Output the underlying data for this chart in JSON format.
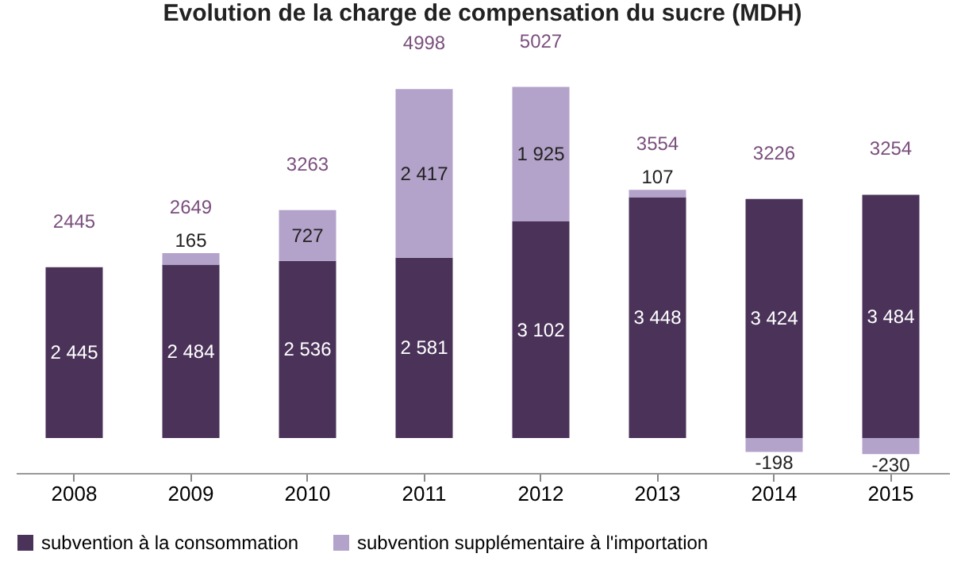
{
  "chart_data": {
    "type": "bar",
    "title": "Evolution de la charge de compensation du sucre (MDH)",
    "stacked": true,
    "legend": "bottom",
    "tick_labels": "x",
    "categories": [
      "2008",
      "2009",
      "2010",
      "2011",
      "2012",
      "2013",
      "2014",
      "2015"
    ],
    "series": [
      {
        "name": "subvention à la consommation",
        "color": "#4a3259",
        "values": [
          2445,
          2484,
          2536,
          2581,
          3102,
          3448,
          3424,
          3484
        ],
        "value_labels": [
          "2 445",
          "2 484",
          "2 536",
          "2 581",
          "3 102",
          "3 448",
          "3 424",
          "3 484"
        ]
      },
      {
        "name": "subvention supplémentaire à l'importation",
        "color": "#b3a2c9",
        "values": [
          null,
          165,
          727,
          2417,
          1925,
          107,
          -198,
          -230
        ],
        "value_labels": [
          null,
          "165",
          "727",
          "2 417",
          "1 925",
          "107",
          "-198",
          "-230"
        ]
      }
    ],
    "totals": [
      "2445",
      "2649",
      "3263",
      "4998",
      "5027",
      "3554",
      "3226",
      "3254"
    ]
  }
}
